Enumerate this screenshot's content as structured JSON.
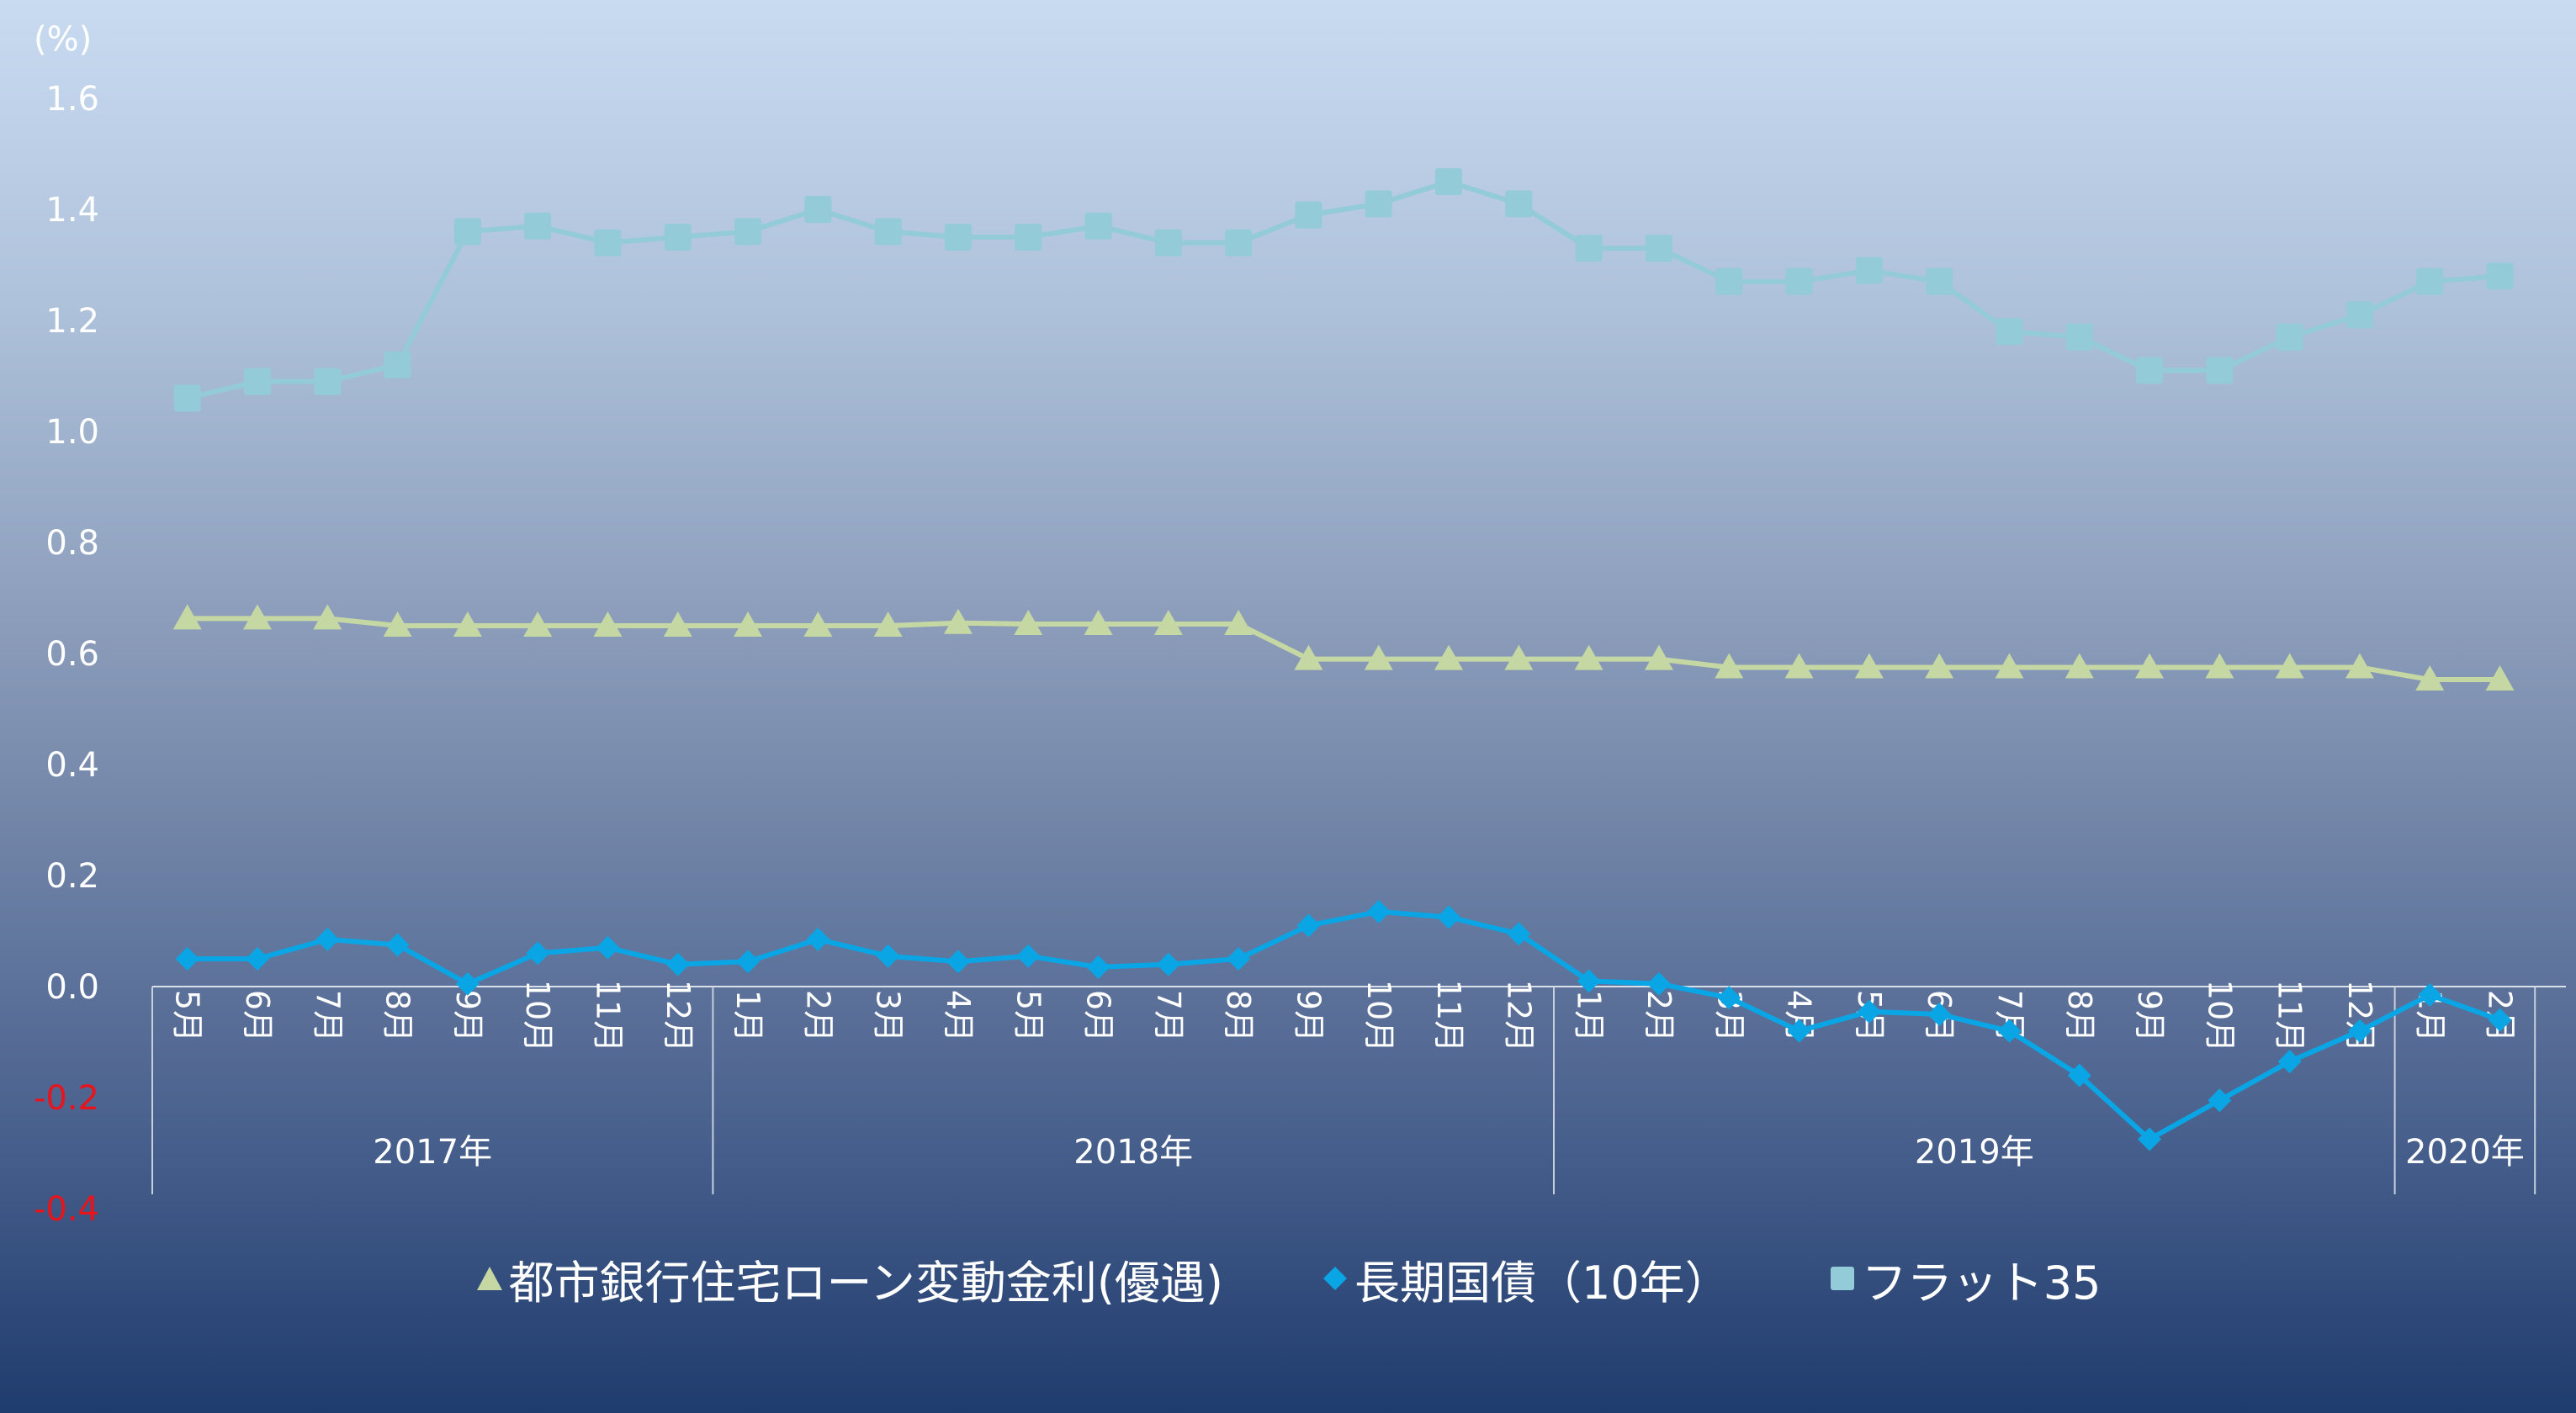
{
  "chart_data": {
    "type": "line",
    "unit_label": "(%)",
    "ylim": [
      -0.4,
      1.6
    ],
    "yticks": [
      "1.6",
      "1.4",
      "1.2",
      "1.0",
      "0.8",
      "0.6",
      "0.4",
      "0.2",
      "0.0",
      "-0.2",
      "-0.4"
    ],
    "categories": [
      "5月",
      "6月",
      "7月",
      "8月",
      "9月",
      "10月",
      "11月",
      "12月",
      "1月",
      "2月",
      "3月",
      "4月",
      "5月",
      "6月",
      "7月",
      "8月",
      "9月",
      "10月",
      "11月",
      "12月",
      "1月",
      "2月",
      "3月",
      "4月",
      "5月",
      "6月",
      "7月",
      "8月",
      "9月",
      "10月",
      "11月",
      "12月",
      "1月",
      "2月"
    ],
    "years": [
      {
        "label": "2017年",
        "start": 0,
        "end": 7
      },
      {
        "label": "2018年",
        "start": 8,
        "end": 19
      },
      {
        "label": "2019年",
        "start": 20,
        "end": 31
      },
      {
        "label": "2020年",
        "start": 32,
        "end": 33
      }
    ],
    "series": [
      {
        "name": "都市銀行住宅ローン変動金利(優遇)",
        "marker": "triangle",
        "color": "#c5d7a2",
        "values": [
          0.663,
          0.663,
          0.663,
          0.65,
          0.65,
          0.65,
          0.65,
          0.65,
          0.65,
          0.65,
          0.65,
          0.655,
          0.653,
          0.653,
          0.653,
          0.653,
          0.59,
          0.59,
          0.59,
          0.59,
          0.59,
          0.59,
          0.575,
          0.575,
          0.575,
          0.575,
          0.575,
          0.575,
          0.575,
          0.575,
          0.575,
          0.575,
          0.553,
          0.553
        ]
      },
      {
        "name": "長期国債（10年）",
        "marker": "diamond",
        "color": "#0aa5e4",
        "values": [
          0.05,
          0.05,
          0.085,
          0.075,
          0.005,
          0.06,
          0.07,
          0.04,
          0.045,
          0.085,
          0.055,
          0.045,
          0.055,
          0.035,
          0.04,
          0.05,
          0.11,
          0.135,
          0.125,
          0.095,
          0.01,
          0.005,
          -0.02,
          -0.08,
          -0.045,
          -0.05,
          -0.08,
          -0.16,
          -0.275,
          -0.205,
          -0.135,
          -0.08,
          -0.015,
          -0.06
        ]
      },
      {
        "name": "フラット35",
        "marker": "square",
        "color": "#93cbd9",
        "values": [
          1.06,
          1.09,
          1.09,
          1.12,
          1.36,
          1.37,
          1.34,
          1.35,
          1.36,
          1.4,
          1.36,
          1.35,
          1.35,
          1.37,
          1.34,
          1.34,
          1.39,
          1.41,
          1.45,
          1.41,
          1.33,
          1.33,
          1.27,
          1.27,
          1.29,
          1.27,
          1.18,
          1.17,
          1.11,
          1.11,
          1.17,
          1.21,
          1.27,
          1.28
        ]
      }
    ],
    "legend_position": "bottom",
    "grid": false
  }
}
